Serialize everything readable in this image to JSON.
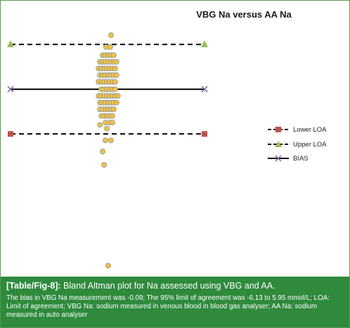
{
  "chart_data": {
    "type": "scatter",
    "title": "VBG Na versus  AA  Na",
    "xlabel": "",
    "ylabel": "",
    "lines": {
      "upper_loa": 5.95,
      "bias": -0.09,
      "lower_loa": -6.13
    },
    "legend": {
      "placement": "right",
      "entries": [
        {
          "label": "Lower LOA",
          "marker": "square",
          "color": "#c0504d",
          "style": "dashed"
        },
        {
          "label": "Upper LOA",
          "marker": "triangle",
          "color": "#9bbb59",
          "style": "dashed"
        },
        {
          "label": "BIAS",
          "marker": "x",
          "color": "#8064a2",
          "style": "solid"
        }
      ]
    },
    "colors": {
      "point_fill": "#f0c040",
      "point_stroke": "#8a9ab5",
      "lines": "#000000"
    },
    "points": [
      {
        "x": 0.5,
        "y": 7.2
      },
      {
        "x": -0.2,
        "y": 5.6
      },
      {
        "x": 0.4,
        "y": 5.6
      },
      {
        "x": -0.7,
        "y": 4.5
      },
      {
        "x": -0.3,
        "y": 4.5
      },
      {
        "x": 0.1,
        "y": 4.5
      },
      {
        "x": 0.5,
        "y": 4.5
      },
      {
        "x": 0.9,
        "y": 4.5
      },
      {
        "x": -1.1,
        "y": 3.6
      },
      {
        "x": -0.7,
        "y": 3.6
      },
      {
        "x": -0.3,
        "y": 3.6
      },
      {
        "x": 0.1,
        "y": 3.6
      },
      {
        "x": 0.5,
        "y": 3.6
      },
      {
        "x": 0.9,
        "y": 3.6
      },
      {
        "x": 1.3,
        "y": 3.6
      },
      {
        "x": -1.3,
        "y": 2.7
      },
      {
        "x": -0.9,
        "y": 2.7
      },
      {
        "x": -0.5,
        "y": 2.7
      },
      {
        "x": -0.1,
        "y": 2.7
      },
      {
        "x": 0.3,
        "y": 2.7
      },
      {
        "x": 0.7,
        "y": 2.7
      },
      {
        "x": 1.1,
        "y": 2.7
      },
      {
        "x": -1.1,
        "y": 1.8
      },
      {
        "x": -0.7,
        "y": 1.8
      },
      {
        "x": -0.3,
        "y": 1.8
      },
      {
        "x": 0.1,
        "y": 1.8
      },
      {
        "x": 0.5,
        "y": 1.8
      },
      {
        "x": 0.9,
        "y": 1.8
      },
      {
        "x": 1.3,
        "y": 1.8
      },
      {
        "x": -1.3,
        "y": 0.9
      },
      {
        "x": -0.9,
        "y": 0.9
      },
      {
        "x": -0.5,
        "y": 0.9
      },
      {
        "x": -0.1,
        "y": 0.9
      },
      {
        "x": 0.3,
        "y": 0.9
      },
      {
        "x": 0.7,
        "y": 0.9
      },
      {
        "x": 1.1,
        "y": 0.9
      },
      {
        "x": -0.9,
        "y": -0.1
      },
      {
        "x": -0.5,
        "y": -0.1
      },
      {
        "x": -0.1,
        "y": -0.1
      },
      {
        "x": 0.3,
        "y": -0.1
      },
      {
        "x": 0.7,
        "y": -0.1
      },
      {
        "x": 1.1,
        "y": -0.1
      },
      {
        "x": -1.3,
        "y": -1.0
      },
      {
        "x": -0.9,
        "y": -1.0
      },
      {
        "x": -0.5,
        "y": -1.0
      },
      {
        "x": -0.1,
        "y": -1.0
      },
      {
        "x": 0.3,
        "y": -1.0
      },
      {
        "x": 0.7,
        "y": -1.0
      },
      {
        "x": 1.1,
        "y": -1.0
      },
      {
        "x": 1.5,
        "y": -1.0
      },
      {
        "x": -1.1,
        "y": -1.9
      },
      {
        "x": -0.7,
        "y": -1.9
      },
      {
        "x": -0.3,
        "y": -1.9
      },
      {
        "x": 0.1,
        "y": -1.9
      },
      {
        "x": 0.5,
        "y": -1.9
      },
      {
        "x": 0.9,
        "y": -1.9
      },
      {
        "x": 1.3,
        "y": -1.9
      },
      {
        "x": -1.1,
        "y": -2.8
      },
      {
        "x": -0.7,
        "y": -2.8
      },
      {
        "x": -0.3,
        "y": -2.8
      },
      {
        "x": 0.1,
        "y": -2.8
      },
      {
        "x": 0.5,
        "y": -2.8
      },
      {
        "x": 0.9,
        "y": -2.8
      },
      {
        "x": -0.9,
        "y": -3.7
      },
      {
        "x": -0.5,
        "y": -3.7
      },
      {
        "x": -0.1,
        "y": -3.7
      },
      {
        "x": 0.3,
        "y": -3.7
      },
      {
        "x": 0.7,
        "y": -3.7
      },
      {
        "x": -0.3,
        "y": -4.6
      },
      {
        "x": 0.3,
        "y": -4.6
      },
      {
        "x": 0.7,
        "y": -4.6
      },
      {
        "x": -1.1,
        "y": -4.9
      },
      {
        "x": -0.1,
        "y": -5.4
      },
      {
        "x": -0.3,
        "y": -7.0
      },
      {
        "x": 0.5,
        "y": -7.0
      },
      {
        "x": -0.7,
        "y": -8.5
      },
      {
        "x": -0.5,
        "y": -10.3
      },
      {
        "x": 0.1,
        "y": -23.9
      }
    ],
    "xlim": [
      -14,
      14
    ],
    "ylim": [
      -25,
      9
    ]
  },
  "caption": {
    "tag": "[Table/Fig-8]:",
    "text": " Bland Altman plot for Na assessed using VBG and AA.",
    "note": "The bias in VBG Na measurement was -0.09; The 95% limit of agreement was -6.13 to 5.95 mmol/L; LOA: Limit of agreement; VBG Na: sodium measured in venous blood in blood gas analyser; AA Na: sodium measured in auto analyser"
  }
}
